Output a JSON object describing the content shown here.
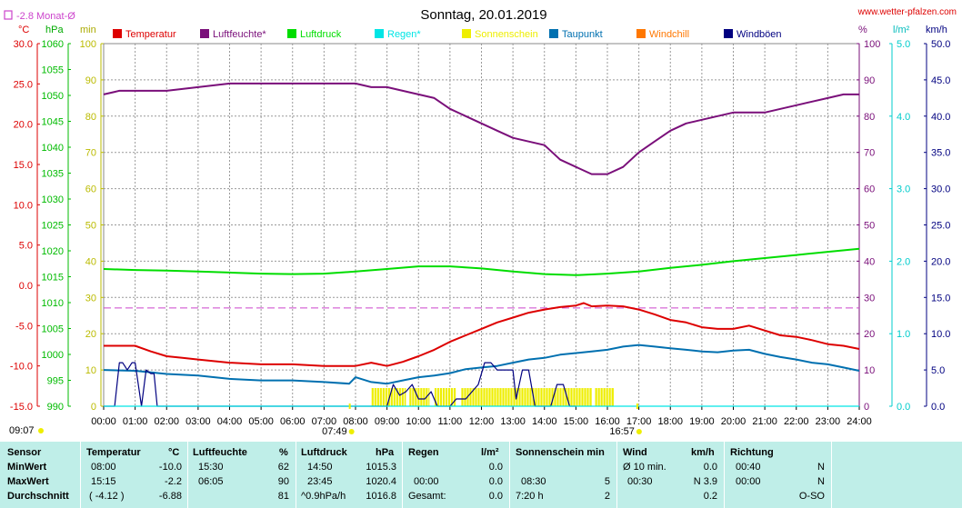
{
  "header": {
    "title": "Sonntag, 20.01.2019",
    "site": "www.wetter-pfalzen.com",
    "month_avg_label": "-2.8 Monat-Ø",
    "unit_labels": {
      "celsius": "°C",
      "hpa": "hPa",
      "min": "min",
      "percent": "%",
      "lm2": "l/m²",
      "kmh": "km/h"
    }
  },
  "colors": {
    "temperature": "#dd0000",
    "humidity": "#7a0f7a",
    "pressure": "#00dd00",
    "rain": "#00e5e5",
    "sunshine": "#eeee00",
    "dewpoint": "#0070b0",
    "windchill": "#ff7700",
    "gusts": "#000080",
    "month_avg": "#cc44cc"
  },
  "chart_data": {
    "type": "line",
    "x_ticks": [
      "00:00",
      "01:00",
      "02:00",
      "03:00",
      "04:00",
      "05:00",
      "06:00",
      "07:00",
      "08:00",
      "09:00",
      "10:00",
      "11:00",
      "12:00",
      "13:00",
      "14:00",
      "15:00",
      "16:00",
      "17:00",
      "18:00",
      "19:00",
      "20:00",
      "21:00",
      "22:00",
      "23:00",
      "24:00"
    ],
    "axes": {
      "temperature": {
        "unit": "°C",
        "range": [
          -15,
          30
        ],
        "ticks": [
          "30.0",
          "25.0",
          "20.0",
          "15.0",
          "10.0",
          "5.0",
          "0.0",
          "-5.0",
          "-10.0",
          "-15.0"
        ]
      },
      "pressure": {
        "unit": "hPa",
        "range": [
          990,
          1060
        ],
        "ticks": [
          "1060",
          "1055",
          "1050",
          "1045",
          "1040",
          "1035",
          "1030",
          "1025",
          "1020",
          "1015",
          "1010",
          "1005",
          "1000",
          "995",
          "990"
        ]
      },
      "sunshine": {
        "unit": "min",
        "range": [
          0,
          100
        ],
        "ticks": [
          "100",
          "90",
          "80",
          "70",
          "60",
          "50",
          "40",
          "30",
          "20",
          "10",
          "0"
        ]
      },
      "humidity": {
        "unit": "%",
        "range": [
          0,
          100
        ],
        "ticks": [
          "100",
          "90",
          "80",
          "70",
          "60",
          "50",
          "40",
          "30",
          "20",
          "10",
          "0"
        ]
      },
      "rain": {
        "unit": "l/m²",
        "range": [
          0,
          5
        ],
        "ticks": [
          "5.0",
          "4.0",
          "3.0",
          "2.0",
          "1.0",
          "0.0"
        ]
      },
      "wind": {
        "unit": "km/h",
        "range": [
          0,
          50
        ],
        "ticks": [
          "50.0",
          "45.0",
          "40.0",
          "35.0",
          "30.0",
          "25.0",
          "20.0",
          "15.0",
          "10.0",
          "5.0",
          "0.0"
        ]
      }
    },
    "month_avg_temperature": -2.8,
    "sunrise": "07:49",
    "sunset": "16:57",
    "legend": [
      "Temperatur",
      "Luftfeuchte*",
      "Luftdruck",
      "Regen*",
      "Sonnenschein",
      "Taupunkt",
      "Windchill",
      "Windböen"
    ],
    "series": [
      {
        "name": "Temperatur",
        "axis": "temperature",
        "color": "#dd0000",
        "x": [
          0,
          1,
          1.5,
          2,
          2.5,
          3,
          4,
          5,
          6,
          7,
          8,
          8.5,
          9,
          9.5,
          10,
          10.5,
          11,
          11.5,
          12,
          12.5,
          13,
          13.5,
          14,
          14.5,
          15,
          15.25,
          15.5,
          16,
          16.5,
          17,
          17.5,
          18,
          18.5,
          19,
          19.5,
          20,
          20.5,
          21,
          21.5,
          22,
          22.5,
          23,
          23.5,
          24
        ],
        "y": [
          -7.5,
          -7.5,
          -8.2,
          -8.8,
          -9.0,
          -9.2,
          -9.6,
          -9.8,
          -9.8,
          -10.0,
          -10.0,
          -9.6,
          -10.0,
          -9.5,
          -8.8,
          -8.0,
          -7.0,
          -6.2,
          -5.4,
          -4.6,
          -4.0,
          -3.4,
          -3.0,
          -2.7,
          -2.5,
          -2.2,
          -2.6,
          -2.5,
          -2.6,
          -3.0,
          -3.6,
          -4.3,
          -4.6,
          -5.2,
          -5.4,
          -5.4,
          -5.0,
          -5.6,
          -6.2,
          -6.4,
          -6.8,
          -7.3,
          -7.5,
          -7.9
        ]
      },
      {
        "name": "Luftfeuchte*",
        "axis": "humidity",
        "color": "#7a0f7a",
        "x": [
          0,
          0.5,
          1,
          2,
          3,
          4,
          5,
          6,
          7,
          8,
          8.5,
          9,
          9.5,
          10,
          10.5,
          11,
          11.5,
          12,
          12.5,
          13,
          13.5,
          14,
          14.5,
          15,
          15.5,
          16,
          16.5,
          17,
          17.5,
          18,
          18.5,
          19,
          19.5,
          20,
          20.5,
          21,
          21.5,
          22,
          22.5,
          23,
          23.5,
          24
        ],
        "y": [
          86,
          87,
          87,
          87,
          88,
          89,
          89,
          89,
          89,
          89,
          88,
          88,
          87,
          86,
          85,
          82,
          80,
          78,
          76,
          74,
          73,
          72,
          68,
          66,
          64,
          64,
          66,
          70,
          73,
          76,
          78,
          79,
          80,
          81,
          81,
          81,
          82,
          83,
          84,
          85,
          86,
          86
        ]
      },
      {
        "name": "Luftdruck",
        "axis": "pressure",
        "color": "#00dd00",
        "x": [
          0,
          1,
          2,
          3,
          4,
          5,
          6,
          7,
          8,
          9,
          10,
          11,
          12,
          13,
          14,
          15,
          16,
          17,
          18,
          19,
          20,
          21,
          22,
          23,
          24
        ],
        "y": [
          1016.5,
          1016.3,
          1016.2,
          1016.0,
          1015.8,
          1015.6,
          1015.5,
          1015.6,
          1016.0,
          1016.5,
          1017.0,
          1017.0,
          1016.6,
          1016.0,
          1015.5,
          1015.3,
          1015.6,
          1016.0,
          1016.7,
          1017.3,
          1018.0,
          1018.6,
          1019.2,
          1019.8,
          1020.4
        ]
      },
      {
        "name": "Taupunkt",
        "axis": "temperature",
        "color": "#0070b0",
        "x": [
          0,
          1,
          2,
          3,
          4,
          5,
          6,
          7,
          7.8,
          8,
          8.5,
          9,
          9.5,
          10,
          10.5,
          11,
          11.5,
          12,
          12.5,
          13,
          13.5,
          14,
          14.5,
          15,
          15.5,
          16,
          16.5,
          17,
          17.5,
          18,
          18.5,
          19,
          19.5,
          20,
          20.5,
          21,
          21.5,
          22,
          22.5,
          23,
          23.5,
          24
        ],
        "y": [
          -10.5,
          -10.6,
          -11.0,
          -11.2,
          -11.6,
          -11.8,
          -11.8,
          -12.0,
          -12.2,
          -11.4,
          -12.0,
          -12.2,
          -11.8,
          -11.4,
          -11.2,
          -10.9,
          -10.4,
          -10.2,
          -10.0,
          -9.6,
          -9.2,
          -9.0,
          -8.6,
          -8.4,
          -8.2,
          -8.0,
          -7.6,
          -7.4,
          -7.6,
          -7.8,
          -8.0,
          -8.2,
          -8.3,
          -8.1,
          -8.0,
          -8.5,
          -8.9,
          -9.2,
          -9.6,
          -9.8,
          -10.2,
          -10.6
        ]
      },
      {
        "name": "Windböen",
        "axis": "wind",
        "color": "#000080",
        "x": [
          0,
          0.35,
          0.5,
          0.6,
          0.75,
          0.9,
          1.0,
          1.1,
          1.2,
          1.35,
          1.5,
          1.6,
          1.7,
          1.8,
          2.0,
          9.0,
          9.2,
          9.4,
          9.6,
          9.8,
          10.0,
          10.2,
          10.4,
          10.6,
          11.0,
          11.2,
          11.5,
          11.7,
          11.9,
          12.1,
          12.3,
          12.5,
          12.8,
          13.0,
          13.1,
          13.3,
          13.5,
          13.7,
          14.0,
          14.2,
          14.4,
          14.6,
          14.8,
          15.0
        ],
        "y": [
          0,
          0,
          6,
          6,
          5,
          6,
          6,
          3,
          0,
          5,
          4.5,
          4.5,
          0,
          0,
          0,
          0,
          3,
          1.5,
          2,
          3,
          1,
          1,
          2,
          0,
          0,
          1,
          1,
          2,
          3,
          6,
          6,
          5,
          5,
          5,
          1,
          5,
          5,
          0,
          0,
          0,
          3,
          3,
          0,
          0
        ]
      },
      {
        "name": "Windchill",
        "axis": "temperature",
        "color": "#ff7700",
        "x": [],
        "y": []
      },
      {
        "name": "Regen*",
        "axis": "rain",
        "color": "#00e5e5",
        "x": [
          0,
          24
        ],
        "y": [
          0,
          0
        ]
      }
    ],
    "sunshine_blocks": [
      [
        8.5,
        9.6
      ],
      [
        9.7,
        10.35
      ],
      [
        10.5,
        11.2
      ],
      [
        11.35,
        15.5
      ],
      [
        15.6,
        16.2
      ]
    ],
    "sunshine_level": 5
  },
  "stats": {
    "sensor": {
      "title": "Sensor",
      "rows": [
        "MinWert",
        "MaxWert",
        "Durchschnitt"
      ]
    },
    "temperature": {
      "title": "Temperatur",
      "unit": "°C",
      "min_time": "08:00",
      "min": "-10.0",
      "max_time": "15:15",
      "max": "-2.2",
      "avg_extra": "( -4.12 )",
      "avg": "-6.88"
    },
    "humidity": {
      "title": "Luftfeuchte",
      "unit": "%",
      "min_time": "15:30",
      "min": "62",
      "max_time": "06:05",
      "max": "90",
      "avg": "81"
    },
    "pressure": {
      "title": "Luftdruck",
      "unit": "hPa",
      "min_time": "14:50",
      "min": "1015.3",
      "max_time": "23:45",
      "max": "1020.4",
      "avg_extra": "^0.9hPa/h",
      "avg": "1016.8"
    },
    "rain": {
      "title": "Regen",
      "unit": "l/m²",
      "min": "0.0",
      "max_time": "00:00",
      "max": "0.0",
      "avg_label": "Gesamt:",
      "avg": "0.0"
    },
    "sunshine": {
      "title": "Sonnenschein min",
      "min": "",
      "max_time": "08:30",
      "max": "5",
      "avg_extra": "7:20 h",
      "avg": "2"
    },
    "wind": {
      "title": "Wind",
      "unit": "km/h",
      "min_label": "Ø 10 min.",
      "min": "0.0",
      "max_time": "00:30",
      "max": "N 3.9",
      "avg": "0.2"
    },
    "direction": {
      "title": "Richtung",
      "min_time": "00:40",
      "min": "N",
      "max_time": "00:00",
      "max": "N",
      "avg": "O-SO"
    }
  },
  "footer": {
    "corner_time": "09:07"
  }
}
